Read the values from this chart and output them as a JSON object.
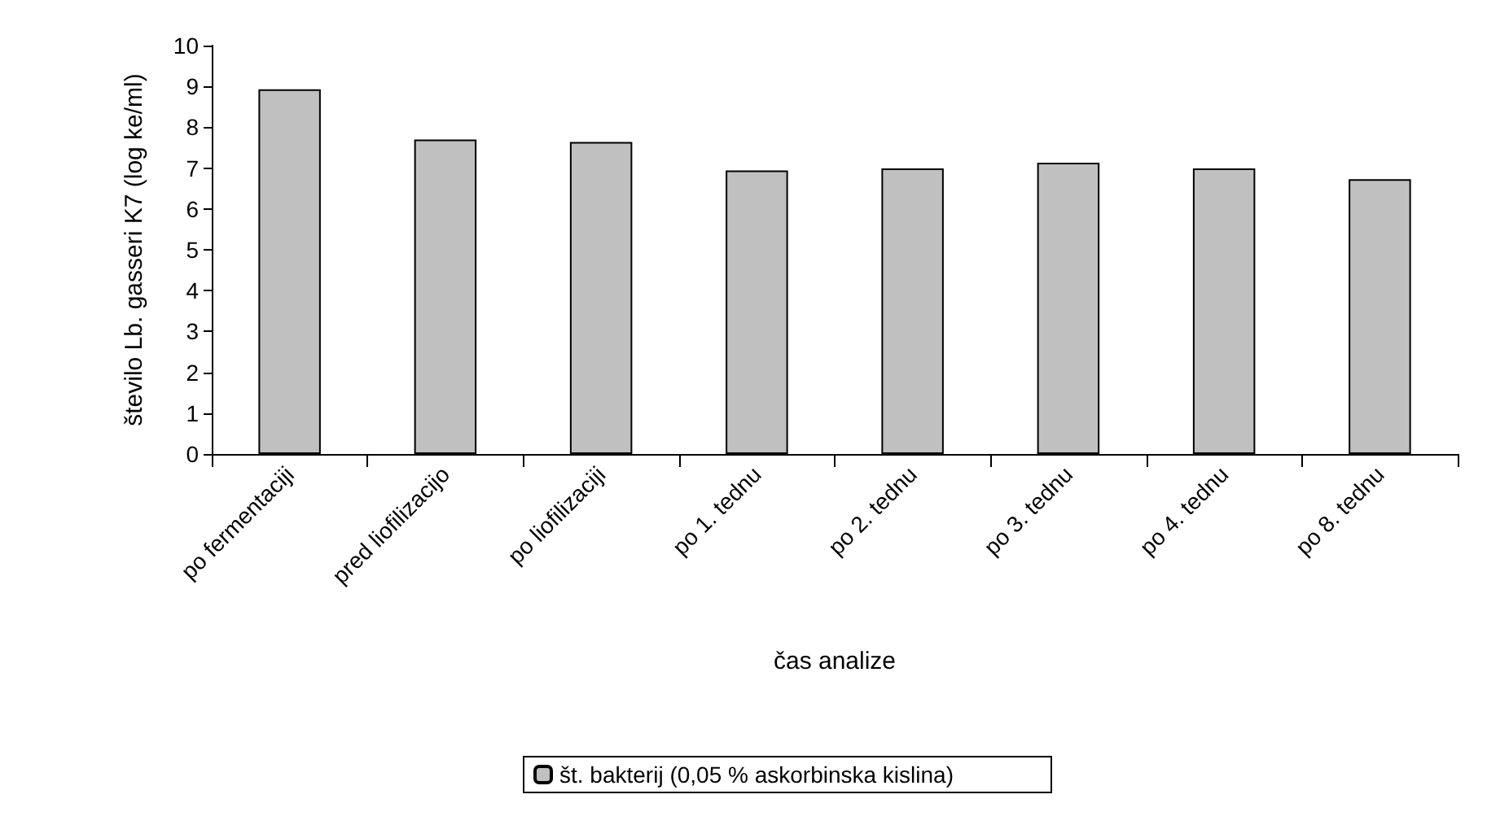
{
  "chart_data": {
    "type": "bar",
    "xlabel": "čas analize",
    "ylabel": "število Lb. gasseri K7 (log ke/ml)",
    "categories": [
      "po fermentaciji",
      "pred liofilizacijo",
      "po liofilizaciji",
      "po 1. tednu",
      "po 2. tednu",
      "po 3. tednu",
      "po 4. tednu",
      "po 8. tednu"
    ],
    "series": [
      {
        "name": "št. bakterij (0,05 % askorbinska kislina)",
        "color": "#c0c0c0",
        "values": [
          8.93,
          7.7,
          7.64,
          6.94,
          6.99,
          7.13,
          6.99,
          6.73
        ]
      }
    ],
    "ylim": [
      0,
      10
    ],
    "yticks": [
      0,
      1,
      2,
      3,
      4,
      5,
      6,
      7,
      8,
      9,
      10
    ],
    "grid": false,
    "legend": "bottom"
  }
}
